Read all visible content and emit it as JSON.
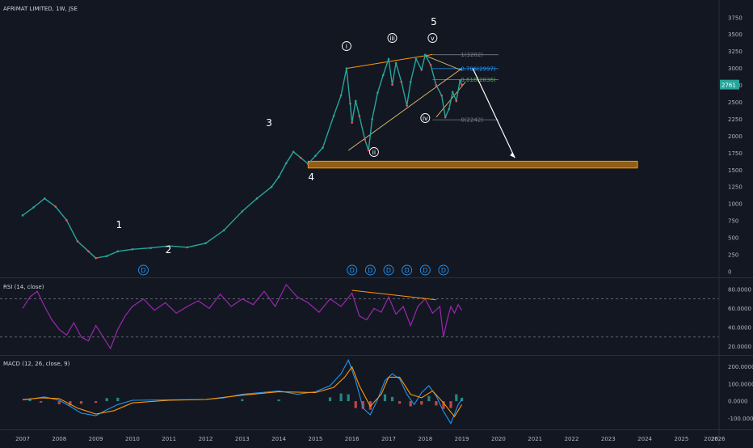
{
  "chart_data": {
    "type": "line",
    "title": "AFRIMAT LIMITED, 1W, JSE",
    "price_axis": {
      "ticks": [
        3750,
        3500,
        3250,
        3000,
        2750,
        2500,
        2250,
        2000,
        1750,
        1500,
        1250,
        1000,
        750,
        500,
        250,
        0
      ],
      "ylim": [
        -60,
        3950
      ]
    },
    "last_price": "2761",
    "x_labels": [
      "2007",
      "2008",
      "2009",
      "2010",
      "2011",
      "2012",
      "2013",
      "2014",
      "2015",
      "2016",
      "2017",
      "2018",
      "2019",
      "2020",
      "2021",
      "2022",
      "2023",
      "2024",
      "2025",
      "2026"
    ],
    "price_series": {
      "name": "AFRIMAT LIMITED",
      "x": [
        2007.0,
        2007.3,
        2007.6,
        2007.9,
        2008.2,
        2008.5,
        2008.8,
        2009.0,
        2009.3,
        2009.6,
        2010.0,
        2010.5,
        2011.0,
        2011.5,
        2012.0,
        2012.5,
        2013.0,
        2013.4,
        2013.8,
        2014.0,
        2014.2,
        2014.4,
        2014.6,
        2014.8,
        2015.0,
        2015.2,
        2015.5,
        2015.7,
        2015.85,
        2015.95,
        2016.0,
        2016.1,
        2016.2,
        2016.35,
        2016.45,
        2016.55,
        2016.7,
        2016.85,
        2017.0,
        2017.1,
        2017.2,
        2017.35,
        2017.5,
        2017.6,
        2017.75,
        2017.9,
        2018.0,
        2018.15,
        2018.3,
        2018.45,
        2018.55,
        2018.65,
        2018.75,
        2018.85,
        2018.95,
        2019.0
      ],
      "y": [
        830,
        950,
        1080,
        960,
        760,
        450,
        300,
        200,
        230,
        300,
        330,
        350,
        380,
        360,
        420,
        610,
        890,
        1080,
        1250,
        1400,
        1600,
        1770,
        1680,
        1590,
        1710,
        1830,
        2300,
        2600,
        3000,
        2480,
        2200,
        2520,
        2300,
        1950,
        1790,
        2250,
        2640,
        2900,
        3140,
        2760,
        3080,
        2800,
        2450,
        2800,
        3140,
        2980,
        3200,
        3050,
        2750,
        2600,
        2280,
        2400,
        2650,
        2520,
        2820,
        2761
      ]
    },
    "wave_labels": [
      "1",
      "2",
      "3",
      "4",
      "5"
    ],
    "roman_labels": [
      "i",
      "ii",
      "iii",
      "iv",
      "v"
    ],
    "fib_levels": [
      {
        "label": "1(3202)",
        "value": 3202,
        "color": "#787b86"
      },
      {
        "label": "0.786(2997)",
        "value": 2997,
        "color": "#2196f3"
      },
      {
        "label": "0.618(2836)",
        "value": 2836,
        "color": "#4caf50"
      },
      {
        "label": "0(2242)",
        "value": 2242,
        "color": "#787b86"
      }
    ],
    "support_zone": [
      1530,
      1630
    ],
    "dividend_markers": [
      2010.3,
      2016.0,
      2016.5,
      2017.0,
      2017.5,
      2018.0,
      2018.5
    ],
    "dividend_glyph": "D",
    "rsi": {
      "title": "RSI (14, close)",
      "ticks": [
        "80.0000",
        "60.0000",
        "40.0000",
        "20.0000"
      ],
      "tick_values": [
        80,
        60,
        40,
        20
      ],
      "bands": [
        70,
        30
      ],
      "ylim": [
        12,
        90
      ],
      "x": [
        2007.0,
        2007.2,
        2007.4,
        2007.6,
        2007.8,
        2008.0,
        2008.2,
        2008.4,
        2008.6,
        2008.8,
        2009.0,
        2009.2,
        2009.4,
        2009.6,
        2009.8,
        2010.0,
        2010.3,
        2010.6,
        2010.9,
        2011.2,
        2011.5,
        2011.8,
        2012.1,
        2012.4,
        2012.7,
        2013.0,
        2013.3,
        2013.6,
        2013.9,
        2014.2,
        2014.5,
        2014.8,
        2015.1,
        2015.4,
        2015.7,
        2016.0,
        2016.2,
        2016.4,
        2016.6,
        2016.8,
        2017.0,
        2017.2,
        2017.4,
        2017.6,
        2017.8,
        2018.0,
        2018.2,
        2018.4,
        2018.5,
        2018.6,
        2018.7,
        2018.8,
        2018.9,
        2019.0
      ],
      "y": [
        60,
        72,
        78,
        62,
        48,
        38,
        32,
        45,
        30,
        26,
        42,
        30,
        18,
        38,
        52,
        62,
        70,
        58,
        66,
        55,
        62,
        68,
        60,
        75,
        62,
        70,
        64,
        78,
        62,
        85,
        72,
        66,
        56,
        70,
        62,
        76,
        52,
        48,
        60,
        56,
        72,
        54,
        62,
        42,
        62,
        70,
        55,
        62,
        30,
        48,
        62,
        55,
        64,
        58
      ]
    },
    "macd": {
      "title": "MACD (12, 26, close, 9)",
      "ticks": [
        "200.0000",
        "100.0000",
        "0.0000",
        "-100.0000"
      ],
      "tick_values": [
        200,
        100,
        0,
        -100
      ],
      "ylim": [
        -160,
        260
      ],
      "macd_x": [
        2007.0,
        2007.3,
        2007.6,
        2008.0,
        2008.3,
        2008.6,
        2009.0,
        2009.3,
        2009.6,
        2010.0,
        2011.0,
        2012.0,
        2012.5,
        2013.0,
        2013.5,
        2014.0,
        2014.5,
        2015.0,
        2015.4,
        2015.7,
        2015.9,
        2016.1,
        2016.3,
        2016.5,
        2016.7,
        2016.9,
        2017.1,
        2017.3,
        2017.5,
        2017.7,
        2017.9,
        2018.1,
        2018.3,
        2018.5,
        2018.7,
        2018.9,
        2019.0
      ],
      "macd_y": [
        10,
        15,
        25,
        5,
        -30,
        -70,
        -85,
        -50,
        -20,
        5,
        8,
        10,
        20,
        40,
        50,
        60,
        40,
        55,
        90,
        160,
        240,
        120,
        -40,
        -80,
        10,
        120,
        160,
        130,
        40,
        -20,
        50,
        90,
        30,
        -60,
        -130,
        -20,
        10
      ],
      "signal_x": [
        2007.0,
        2007.5,
        2008.0,
        2008.5,
        2009.0,
        2009.5,
        2010.0,
        2011.0,
        2012.0,
        2013.0,
        2014.0,
        2015.0,
        2015.5,
        2015.8,
        2016.0,
        2016.2,
        2016.5,
        2016.8,
        2017.0,
        2017.3,
        2017.6,
        2017.9,
        2018.2,
        2018.5,
        2018.8,
        2019.0
      ],
      "signal_y": [
        8,
        20,
        15,
        -40,
        -75,
        -55,
        -10,
        5,
        10,
        35,
        55,
        50,
        80,
        140,
        200,
        90,
        -30,
        40,
        140,
        140,
        40,
        20,
        60,
        -10,
        -90,
        -20
      ],
      "hist_x": [
        2007.2,
        2007.5,
        2008.0,
        2008.3,
        2008.6,
        2009.0,
        2009.3,
        2009.6,
        2013.0,
        2014.0,
        2015.4,
        2015.7,
        2015.9,
        2016.1,
        2016.3,
        2016.5,
        2016.9,
        2017.1,
        2017.3,
        2017.6,
        2017.9,
        2018.1,
        2018.3,
        2018.5,
        2018.7,
        2018.85,
        2019.0
      ],
      "hist_y": [
        10,
        -8,
        -18,
        -25,
        -15,
        -10,
        18,
        20,
        12,
        10,
        22,
        45,
        40,
        -40,
        -45,
        -50,
        40,
        25,
        -15,
        -30,
        -20,
        30,
        -25,
        -45,
        -40,
        40,
        20
      ]
    }
  }
}
